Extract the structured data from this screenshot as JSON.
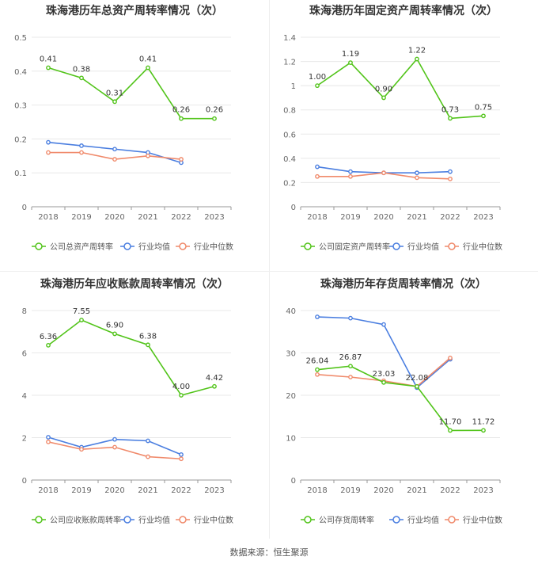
{
  "source": {
    "label": "数据来源：",
    "value": "恒生聚源"
  },
  "legend_other": [
    "行业均值",
    "行业中位数"
  ],
  "colors": {
    "main": "#52c41a",
    "avg": "#4a7ee0",
    "median": "#f08a6b",
    "axis": "#999999",
    "grid": "#e8e8e8"
  },
  "chart_data": [
    {
      "type": "line",
      "title": "珠海港历年总资产周转率情况（次）",
      "x": [
        "2018",
        "2019",
        "2020",
        "2021",
        "2022",
        "2023"
      ],
      "yticks": [
        "0",
        "0.1",
        "0.2",
        "0.3",
        "0.4",
        "0.5"
      ],
      "ylim": [
        0,
        0.5
      ],
      "series": [
        {
          "name": "公司总资产周转率",
          "values": [
            0.41,
            0.38,
            0.31,
            0.41,
            0.26,
            0.26
          ],
          "labels": [
            "0.41",
            "0.38",
            "0.31",
            "0.41",
            "0.26",
            "0.26"
          ]
        },
        {
          "name": "行业均值",
          "values": [
            0.19,
            0.18,
            0.17,
            0.16,
            0.13,
            null
          ]
        },
        {
          "name": "行业中位数",
          "values": [
            0.16,
            0.16,
            0.14,
            0.15,
            0.14,
            null
          ]
        }
      ]
    },
    {
      "type": "line",
      "title": "珠海港历年固定资产周转率情况（次）",
      "x": [
        "2018",
        "2019",
        "2020",
        "2021",
        "2022",
        "2023"
      ],
      "yticks": [
        "0",
        "0.2",
        "0.4",
        "0.6",
        "0.8",
        "1",
        "1.2",
        "1.4"
      ],
      "ylim": [
        0,
        1.4
      ],
      "series": [
        {
          "name": "公司固定资产周转率",
          "values": [
            1.0,
            1.19,
            0.9,
            1.22,
            0.73,
            0.75
          ],
          "labels": [
            "1.00",
            "1.19",
            "0.90",
            "1.22",
            "0.73",
            "0.75"
          ]
        },
        {
          "name": "行业均值",
          "values": [
            0.33,
            0.29,
            0.28,
            0.28,
            0.29,
            null
          ]
        },
        {
          "name": "行业中位数",
          "values": [
            0.25,
            0.25,
            0.28,
            0.24,
            0.23,
            null
          ]
        }
      ]
    },
    {
      "type": "line",
      "title": "珠海港历年应收账款周转率情况（次）",
      "x": [
        "2018",
        "2019",
        "2020",
        "2021",
        "2022",
        "2023"
      ],
      "yticks": [
        "0",
        "2",
        "4",
        "6",
        "8"
      ],
      "ylim": [
        0,
        8
      ],
      "series": [
        {
          "name": "公司应收账款周转率",
          "values": [
            6.36,
            7.55,
            6.9,
            6.38,
            4.0,
            4.42
          ],
          "labels": [
            "6.36",
            "7.55",
            "6.90",
            "6.38",
            "4.00",
            "4.42"
          ]
        },
        {
          "name": "行业均值",
          "values": [
            2.02,
            1.55,
            1.92,
            1.85,
            1.2,
            null
          ]
        },
        {
          "name": "行业中位数",
          "values": [
            1.8,
            1.45,
            1.55,
            1.1,
            1.0,
            null
          ]
        }
      ]
    },
    {
      "type": "line",
      "title": "珠海港历年存货周转率情况（次）",
      "x": [
        "2018",
        "2019",
        "2020",
        "2021",
        "2022",
        "2023"
      ],
      "yticks": [
        "0",
        "10",
        "20",
        "30",
        "40"
      ],
      "ylim": [
        0,
        40
      ],
      "series": [
        {
          "name": "公司存货周转率",
          "values": [
            26.04,
            26.87,
            23.03,
            22.08,
            11.7,
            11.72
          ],
          "labels": [
            "26.04",
            "26.87",
            "23.03",
            "22.08",
            "11.70",
            "11.72"
          ]
        },
        {
          "name": "行业均值",
          "values": [
            38.5,
            38.2,
            36.7,
            21.8,
            28.5,
            null
          ]
        },
        {
          "name": "行业中位数",
          "values": [
            24.9,
            24.3,
            23.4,
            22.1,
            28.8,
            null
          ]
        }
      ]
    }
  ]
}
